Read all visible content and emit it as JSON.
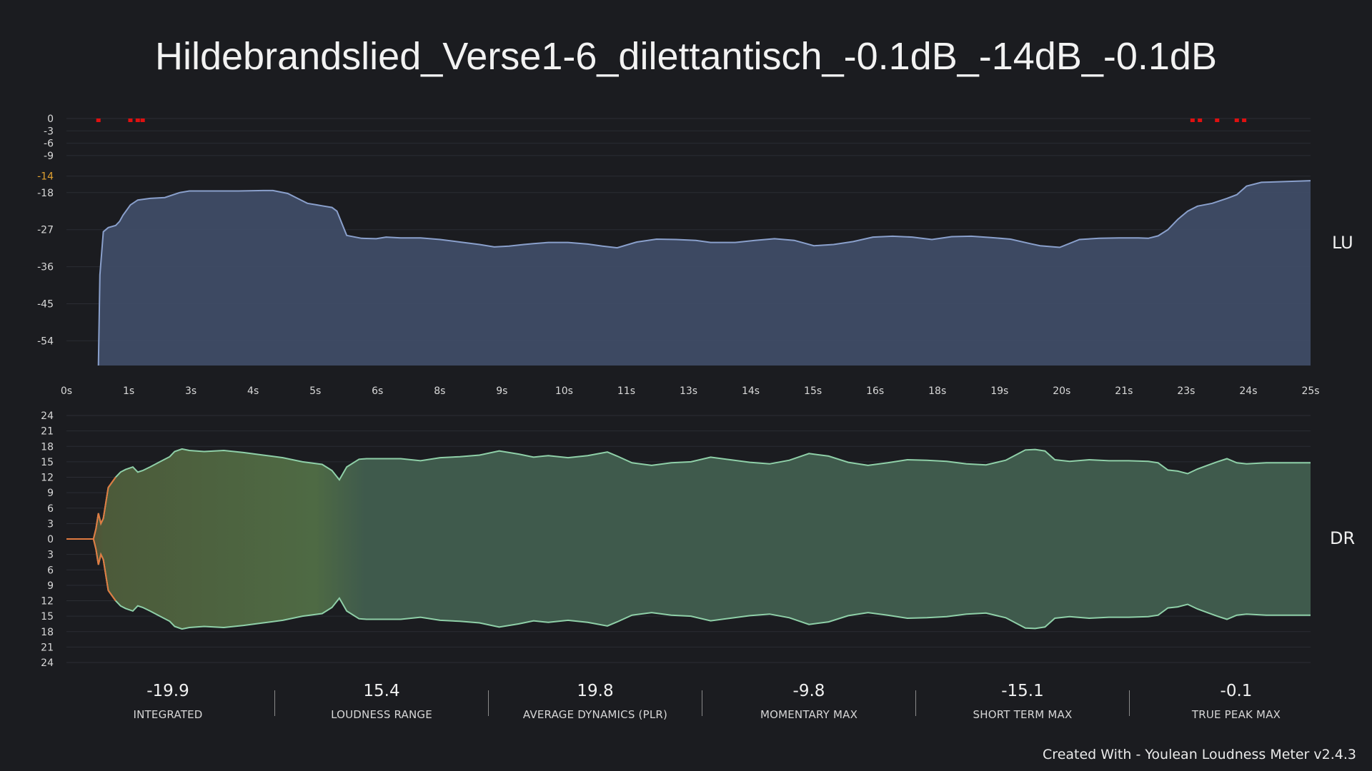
{
  "title": "Hildebrandslied_Verse1-6_dilettantisch_-0.1dB_-14dB_-0.1dB",
  "colors": {
    "background": "#1b1c20",
    "lu_fill": "#3f4c66",
    "lu_line": "#8aa0cc",
    "target_tick": "#e0a030",
    "clip_marker": "#e01010",
    "dr_fill": "#3f5a4c",
    "dr_line": "#8fd0a8",
    "dr_onset": "#e07a40"
  },
  "chart_data": [
    {
      "type": "area",
      "name": "loudness",
      "side_label": "LU",
      "x_ticks": [
        "0s",
        "1s",
        "3s",
        "4s",
        "5s",
        "6s",
        "8s",
        "9s",
        "10s",
        "11s",
        "13s",
        "14s",
        "15s",
        "16s",
        "18s",
        "19s",
        "20s",
        "21s",
        "23s",
        "24s",
        "25s"
      ],
      "x_range": [
        0,
        25.3
      ],
      "y_ticks": [
        0,
        -3,
        -6,
        -9,
        -14,
        -18,
        -27,
        -36,
        -45,
        -54
      ],
      "y_range": [
        -60,
        0
      ],
      "target_level": -14,
      "clip_markers": [
        0.65,
        1.3,
        1.45,
        1.55,
        22.9,
        23.05,
        23.4,
        23.8,
        23.95
      ],
      "x": [
        0.65,
        0.68,
        0.75,
        0.85,
        1.0,
        1.08,
        1.15,
        1.3,
        1.45,
        1.7,
        2.0,
        2.3,
        2.5,
        3.0,
        3.5,
        4.0,
        4.2,
        4.5,
        4.7,
        4.9,
        5.1,
        5.2,
        5.4,
        5.5,
        5.7,
        6.0,
        6.3,
        6.5,
        6.8,
        7.2,
        7.6,
        8.0,
        8.4,
        8.7,
        9.0,
        9.3,
        9.5,
        9.8,
        10.2,
        10.6,
        10.9,
        11.2,
        11.6,
        12.0,
        12.4,
        12.8,
        13.1,
        13.6,
        14.0,
        14.4,
        14.8,
        15.2,
        15.6,
        16.0,
        16.4,
        16.8,
        17.2,
        17.6,
        18.0,
        18.4,
        18.8,
        19.2,
        19.6,
        19.8,
        20.2,
        20.6,
        21.0,
        21.4,
        21.8,
        22.0,
        22.2,
        22.4,
        22.6,
        22.8,
        23.0,
        23.3,
        23.6,
        23.8,
        24.0,
        24.3,
        25.3
      ],
      "y": [
        -60,
        -38,
        -27.5,
        -26.5,
        -26,
        -25,
        -23.5,
        -21,
        -19.8,
        -19.4,
        -19.2,
        -18,
        -17.6,
        -17.6,
        -17.6,
        -17.5,
        -17.5,
        -18.2,
        -19.4,
        -20.6,
        -21,
        -21.2,
        -21.6,
        -22.5,
        -28.4,
        -29.1,
        -29.2,
        -28.8,
        -29,
        -29,
        -29.4,
        -30,
        -30.6,
        -31.2,
        -31,
        -30.6,
        -30.4,
        -30.1,
        -30.1,
        -30.5,
        -31,
        -31.4,
        -30,
        -29.3,
        -29.4,
        -29.6,
        -30.1,
        -30.1,
        -29.6,
        -29.2,
        -29.6,
        -30.9,
        -30.6,
        -29.9,
        -28.8,
        -28.6,
        -28.8,
        -29.4,
        -28.7,
        -28.6,
        -28.9,
        -29.3,
        -30.4,
        -30.9,
        -31.3,
        -29.4,
        -29.1,
        -29.0,
        -29.0,
        -29.1,
        -28.5,
        -27,
        -24.5,
        -22.5,
        -21.3,
        -20.6,
        -19.4,
        -18.5,
        -16.4,
        -15.5,
        -15.1
      ]
    },
    {
      "type": "area",
      "name": "dynamic-range",
      "side_label": "DR",
      "y_ticks": [
        24,
        21,
        18,
        15,
        12,
        9,
        6,
        3,
        0,
        3,
        6,
        9,
        12,
        15,
        18,
        21,
        24
      ],
      "y_range": [
        -24,
        24
      ],
      "x": [
        0.0,
        0.55,
        0.6,
        0.65,
        0.7,
        0.75,
        0.85,
        1.0,
        1.1,
        1.2,
        1.35,
        1.45,
        1.55,
        1.7,
        1.9,
        2.1,
        2.2,
        2.35,
        2.5,
        2.8,
        3.2,
        3.6,
        4.0,
        4.4,
        4.8,
        5.2,
        5.4,
        5.55,
        5.7,
        5.95,
        6.1,
        6.2,
        6.4,
        6.8,
        7.2,
        7.6,
        8.0,
        8.4,
        8.8,
        9.2,
        9.5,
        9.8,
        10.2,
        10.6,
        11.0,
        11.2,
        11.5,
        11.9,
        12.3,
        12.7,
        13.1,
        13.5,
        13.9,
        14.3,
        14.7,
        15.1,
        15.5,
        15.9,
        16.3,
        16.7,
        17.1,
        17.5,
        17.9,
        18.3,
        18.7,
        19.1,
        19.5,
        19.7,
        19.9,
        20.1,
        20.4,
        20.8,
        21.2,
        21.6,
        22.0,
        22.2,
        22.4,
        22.6,
        22.8,
        23.0,
        23.2,
        23.4,
        23.6,
        23.8,
        24.0,
        24.4,
        25.3
      ],
      "y": [
        0,
        0,
        2,
        5,
        3,
        4,
        10,
        12,
        13,
        13.5,
        14,
        13,
        13.3,
        14,
        15,
        16,
        17,
        17.5,
        17.2,
        17,
        17.2,
        16.8,
        16.3,
        15.8,
        15,
        14.5,
        13.3,
        11.5,
        14,
        15.5,
        15.6,
        15.6,
        15.6,
        15.6,
        15.2,
        15.8,
        16,
        16.3,
        17.1,
        16.5,
        15.9,
        16.2,
        15.8,
        16.2,
        16.9,
        16.1,
        14.8,
        14.3,
        14.8,
        15,
        15.9,
        15.4,
        14.9,
        14.6,
        15.3,
        16.6,
        16.1,
        14.9,
        14.3,
        14.8,
        15.4,
        15.3,
        15.1,
        14.6,
        14.4,
        15.3,
        17.3,
        17.4,
        17.1,
        15.4,
        15.1,
        15.4,
        15.2,
        15.2,
        15.1,
        14.8,
        13.4,
        13.2,
        12.7,
        13.6,
        14.3,
        15.0,
        15.6,
        14.8,
        14.6,
        14.8,
        14.8
      ]
    }
  ],
  "stats": [
    {
      "value": "-19.9",
      "label": "INTEGRATED"
    },
    {
      "value": "15.4",
      "label": "LOUDNESS RANGE"
    },
    {
      "value": "19.8",
      "label": "AVERAGE DYNAMICS (PLR)"
    },
    {
      "value": "-9.8",
      "label": "MOMENTARY MAX"
    },
    {
      "value": "-15.1",
      "label": "SHORT TERM MAX"
    },
    {
      "value": "-0.1",
      "label": "TRUE PEAK MAX"
    }
  ],
  "credit": "Created With - Youlean Loudness Meter v2.4.3"
}
